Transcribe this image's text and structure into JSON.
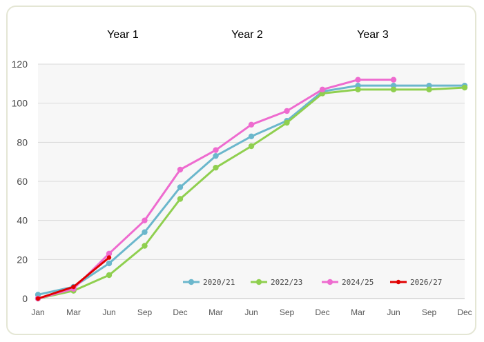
{
  "chart_data": {
    "type": "line",
    "year_labels": [
      "Year 1",
      "Year 2",
      "Year 3"
    ],
    "x_tick_labels": [
      "Jan",
      "Mar",
      "Jun",
      "Sep",
      "Dec",
      "Mar",
      "Jun",
      "Sep",
      "Dec",
      "Mar",
      "Jun",
      "Sep",
      "Dec"
    ],
    "y_ticks": [
      0,
      20,
      40,
      60,
      80,
      100,
      120
    ],
    "ylim": [
      0,
      120
    ],
    "grid": true,
    "legend_position": "bottom-right",
    "series": [
      {
        "name": "2020/21",
        "color": "#6bb7cc",
        "values": [
          2,
          6,
          18,
          34,
          57,
          73,
          83,
          91,
          106,
          109,
          109,
          109,
          109
        ]
      },
      {
        "name": "2022/23",
        "color": "#8fcf4f",
        "values": [
          0,
          4,
          12,
          27,
          51,
          67,
          78,
          90,
          105,
          107,
          107,
          107,
          108
        ]
      },
      {
        "name": "2024/25",
        "color": "#ee6bcf",
        "values": [
          0,
          5,
          23,
          40,
          66,
          76,
          89,
          96,
          107,
          112,
          112,
          null,
          null
        ]
      },
      {
        "name": "2026/27",
        "color": "#e00000",
        "values": [
          0,
          6,
          21,
          null,
          null,
          null,
          null,
          null,
          null,
          null,
          null,
          null,
          null
        ]
      }
    ]
  }
}
